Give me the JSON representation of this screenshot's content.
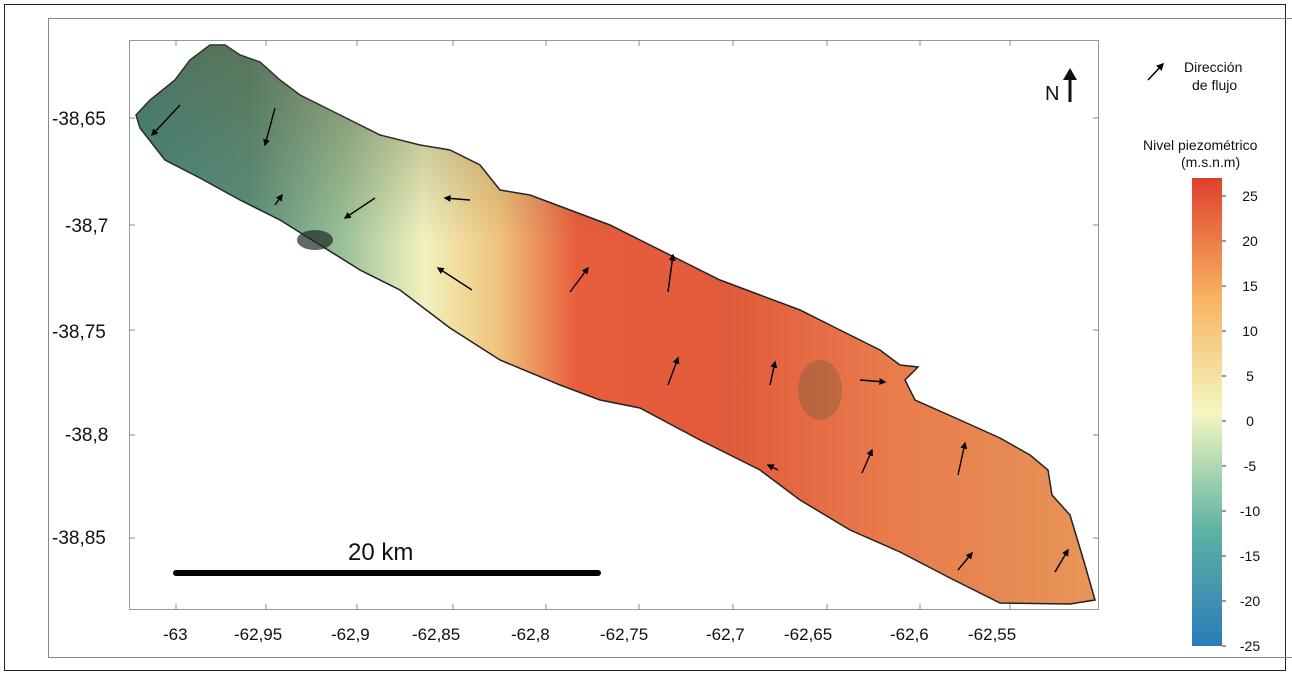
{
  "map": {
    "y_ticks": [
      "-38,65",
      "-38,7",
      "-38,75",
      "-38,8",
      "-38,85"
    ],
    "x_ticks": [
      "-63",
      "-62,95",
      "-62,9",
      "-62,85",
      "-62,8",
      "-62,75",
      "-62,7",
      "-62,65",
      "-62,6",
      "-62,55"
    ],
    "north_label": "N",
    "scale_bar_label": "20 km"
  },
  "legend": {
    "arrow_line1": "Dirección",
    "arrow_line2": "de flujo",
    "colorbar_title": "Nivel piezométrico",
    "colorbar_units": "(m.s.n.m)",
    "colorbar_ticks": [
      "25",
      "20",
      "15",
      "10",
      "5",
      "0",
      "-5",
      "-10",
      "-15",
      "-20",
      "-25"
    ],
    "colorbar_range": [
      -25,
      27
    ],
    "colors": {
      "low": "#2b7bba",
      "mid_low": "#5fb3a3",
      "mid": "#f4f7c0",
      "mid_high": "#f6b15f",
      "high": "#e03f2e"
    }
  }
}
